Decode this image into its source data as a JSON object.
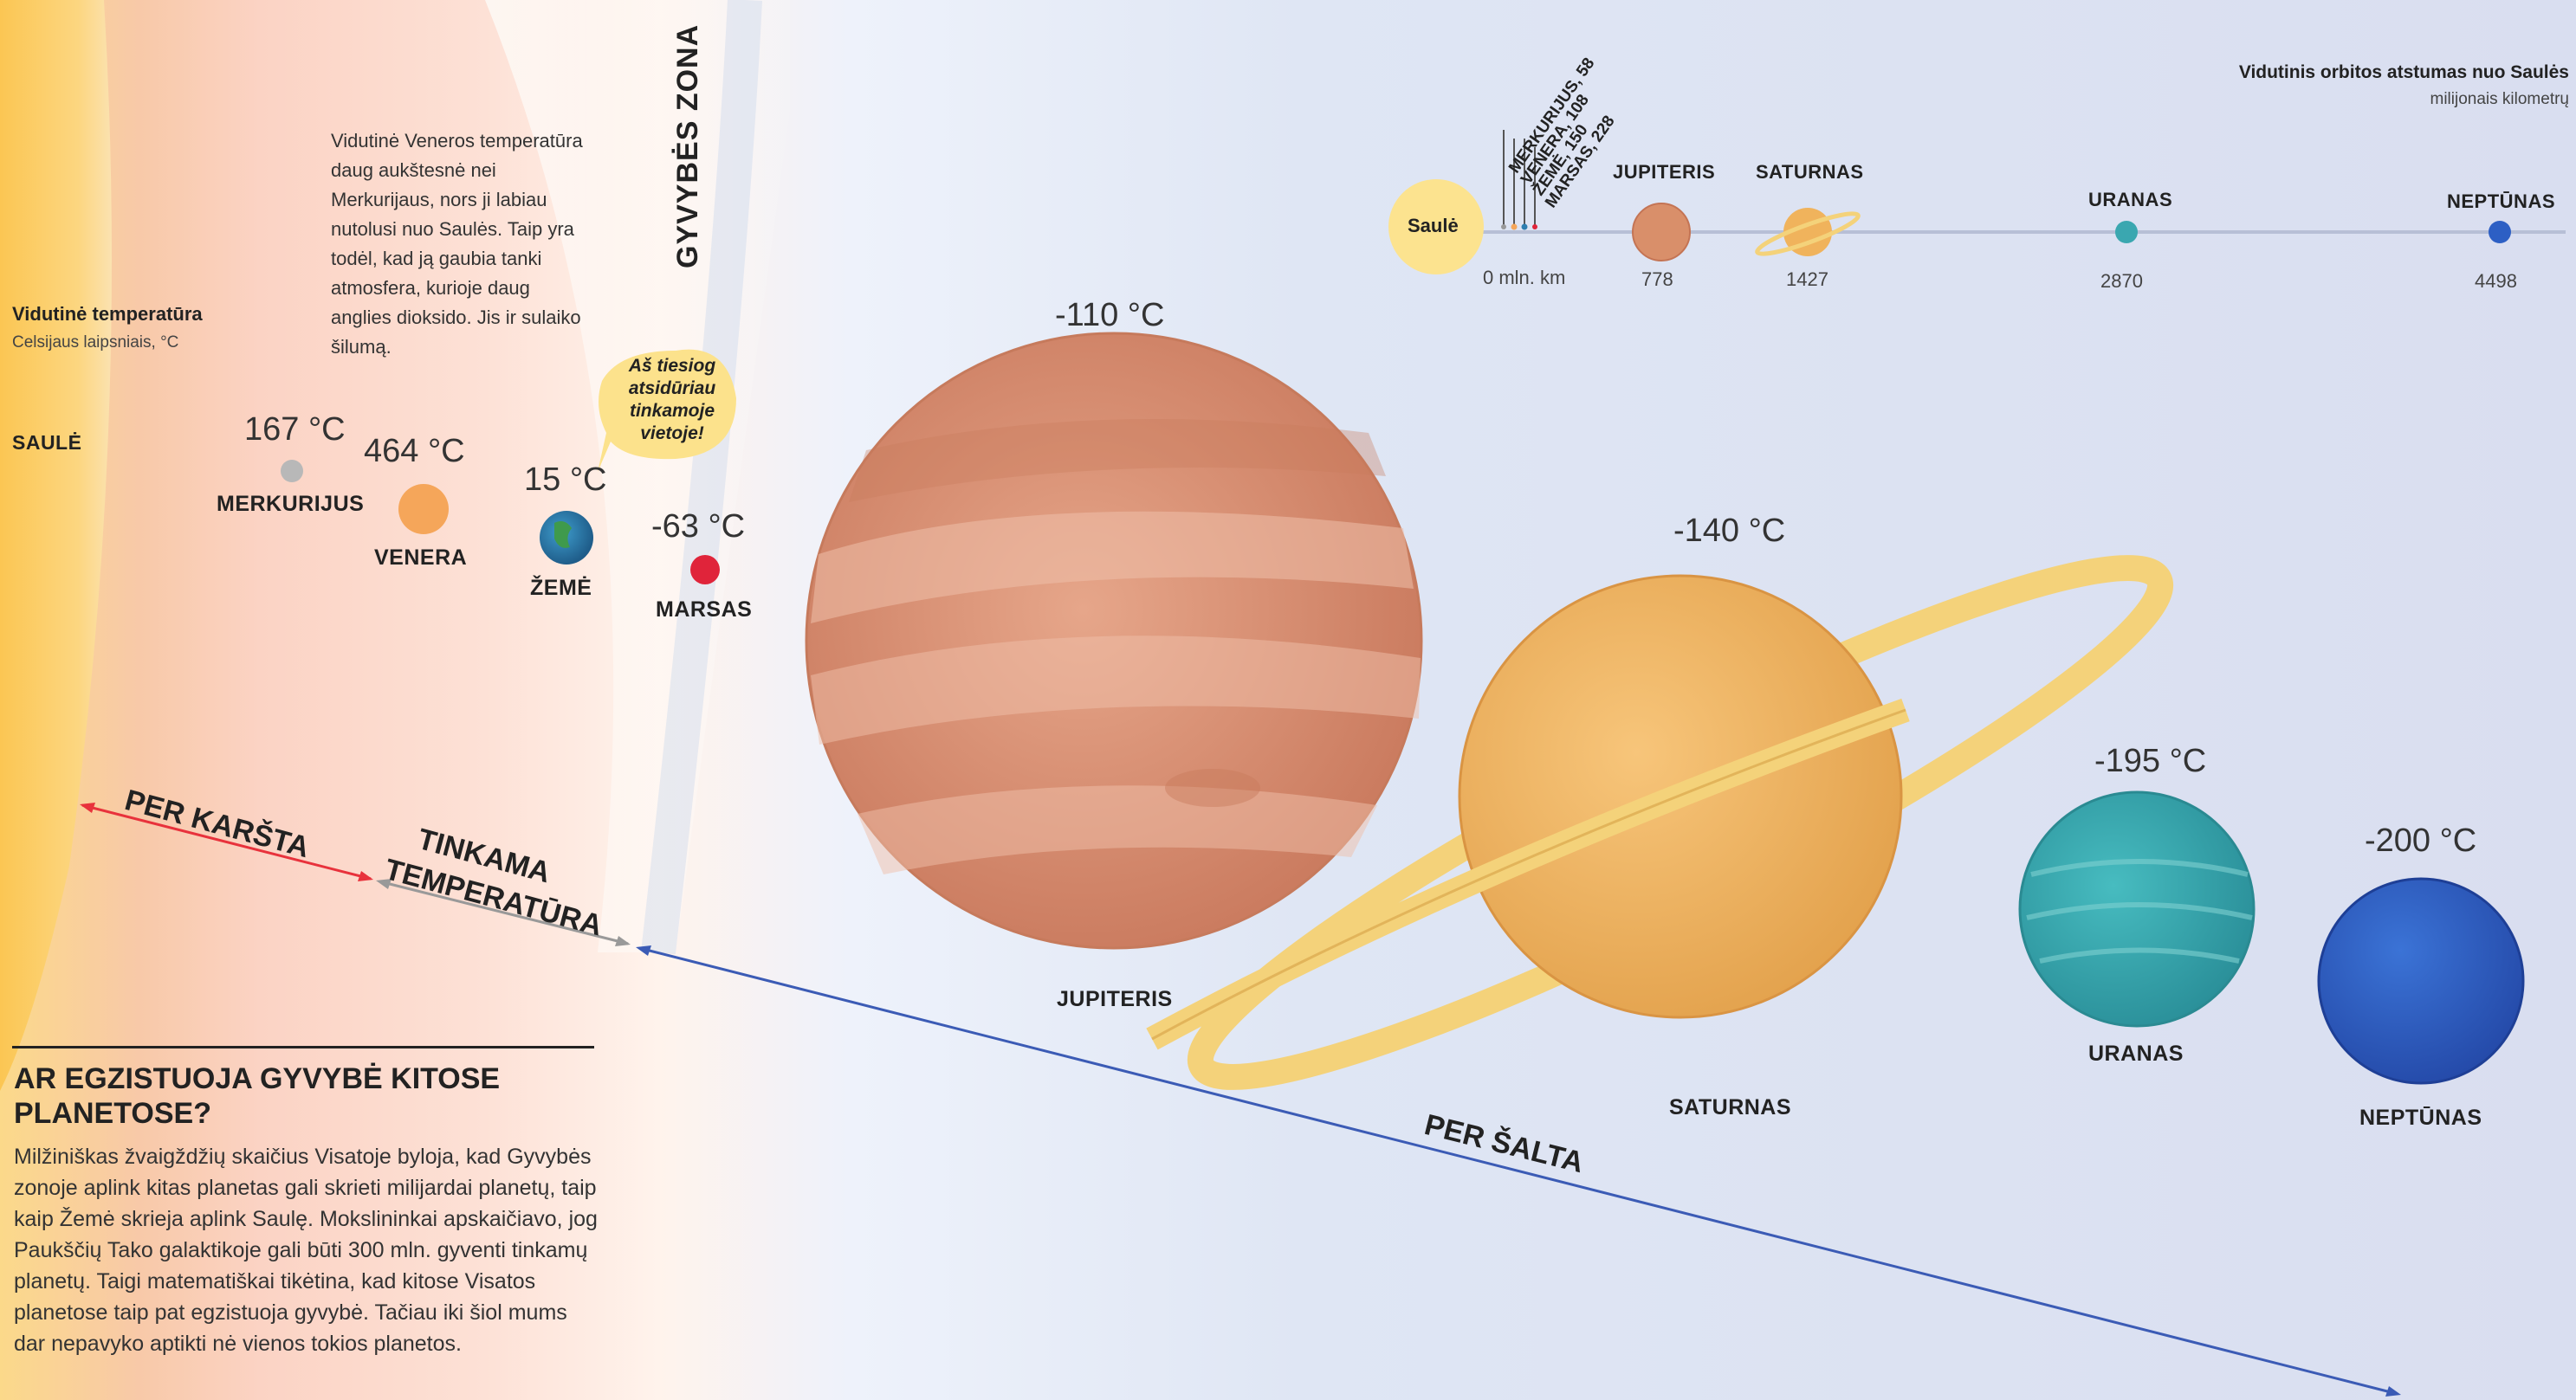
{
  "header": {
    "avg_temp_title": "Vidutinė temperatūra",
    "avg_temp_subtitle": "Celsijaus laipsniais, °C",
    "habitable_zone": "GYVYBĖS ZONA"
  },
  "sun": {
    "label": "SAULĖ"
  },
  "venus_note": "Vidutinė Veneros temperatūra daug aukštesnė nei Merkurijaus, nors ji labiau nutolusi nuo Saulės. Taip yra todėl, kad ją gaubia tanki atmosfera, kurioje daug anglies dioksido. Jis ir sulaiko šilumą.",
  "earth_bubble": "Aš tiesiog atsidūriau tinkamoje vietoje!",
  "planets": [
    {
      "name": "MERKURIJUS",
      "temp": "167 °C",
      "color": "#b8b8b8"
    },
    {
      "name": "VENERA",
      "temp": "464 °C",
      "color": "#f5a65a"
    },
    {
      "name": "ŽEMĖ",
      "temp": "15 °C",
      "color": "#2f7fb0"
    },
    {
      "name": "MARSAS",
      "temp": "-63 °C",
      "color": "#e0243a"
    },
    {
      "name": "JUPITERIS",
      "temp": "-110 °C",
      "color": "#d98f6a"
    },
    {
      "name": "SATURNAS",
      "temp": "-140 °C",
      "color": "#f0b35c"
    },
    {
      "name": "URANAS",
      "temp": "-195 °C",
      "color": "#3aa7b0"
    },
    {
      "name": "NEPTŪNAS",
      "temp": "-200 °C",
      "color": "#2d5fc4"
    }
  ],
  "zones": {
    "too_hot": "PER KARŠTA",
    "suitable_1": "TINKAMA",
    "suitable_2": "TEMPERATŪRA",
    "too_cold": "PER ŠALTA"
  },
  "colors": {
    "hot_arrow": "#e8323c",
    "suitable_arrow": "#888888",
    "cold_arrow": "#3b5bb5"
  },
  "orbit": {
    "title": "Vidutinis orbitos atstumas nuo Saulės",
    "subtitle": "milijonais kilometrų",
    "sun_label": "Saulė",
    "origin_label": "0 mln. km",
    "inner": [
      {
        "label": "MERKURIJUS, 58"
      },
      {
        "label": "VENERA, 108"
      },
      {
        "label": "ŽEMĖ, 150"
      },
      {
        "label": "MARSAS, 228"
      }
    ],
    "outer": [
      {
        "name": "JUPITERIS",
        "distance": "778"
      },
      {
        "name": "SATURNAS",
        "distance": "1427"
      },
      {
        "name": "URANAS",
        "distance": "2870"
      },
      {
        "name": "NEPTŪNAS",
        "distance": "4498"
      }
    ]
  },
  "life": {
    "title": "AR EGZISTUOJA GYVYBĖ KITOSE PLANETOSE?",
    "text": "Milžiniškas žvaigždžių skaičius Visatoje byloja, kad Gyvybės zonoje aplink kitas planetas gali skrieti milijardai planetų, taip kaip Žemė skrieja aplink Saulę. Mokslininkai apskaičiavo, jog Paukščių Tako galaktikoje gali būti 300 mln. gyventi tinkamų planetų. Taigi matematiškai tikėtina, kad kitose Visatos planetose taip pat egzistuoja gyvybė. Tačiau iki šiol mums dar nepavyko aptikti nė vienos tokios planetos."
  }
}
